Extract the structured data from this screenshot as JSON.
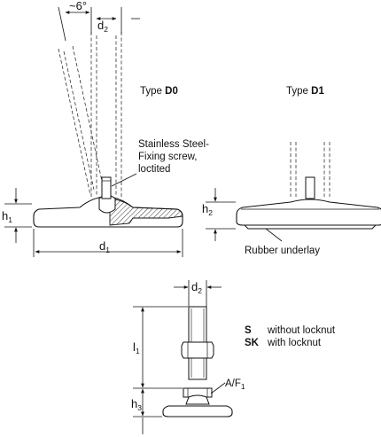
{
  "angle_label": "~6°",
  "d2_label": "d",
  "d2_sub": "2",
  "d1_label": "d",
  "d1_sub": "1",
  "h1_label": "h",
  "h1_sub": "1",
  "h2_label": "h",
  "h2_sub": "2",
  "h3_label": "h",
  "h3_sub": "3",
  "l1_label": "l",
  "l1_sub": "1",
  "type_d0": {
    "prefix": "Type ",
    "code": "D0"
  },
  "type_d1": {
    "prefix": "Type ",
    "code": "D1"
  },
  "fixing_screw": [
    "Stainless Steel-",
    "Fixing screw,",
    "loctited"
  ],
  "rubber_underlay": "Rubber underlay",
  "af_label": "A/F",
  "af_sub": "1",
  "legend": [
    {
      "code": "S",
      "text": "without locknut"
    },
    {
      "code": "SK",
      "text": "with locknut"
    }
  ]
}
